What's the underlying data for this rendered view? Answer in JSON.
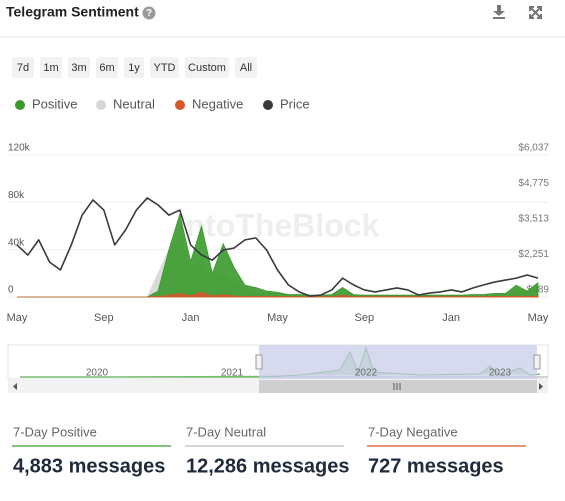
{
  "header": {
    "title": "Telegram Sentiment"
  },
  "range_buttons": [
    "7d",
    "1m",
    "3m",
    "6m",
    "1y",
    "YTD",
    "Custom",
    "All"
  ],
  "chart_data": {
    "type": "area",
    "watermark": "IntoTheBlock",
    "legend": "top-left",
    "grid": true,
    "categories": [
      "May",
      null,
      null,
      null,
      null,
      null,
      null,
      null,
      "Sep",
      null,
      null,
      null,
      null,
      null,
      null,
      null,
      "Jan",
      null,
      null,
      null,
      null,
      null,
      null,
      null,
      "May",
      null,
      null,
      null,
      null,
      null,
      null,
      null,
      "Sep",
      null,
      null,
      null,
      null,
      null,
      null,
      null,
      "Jan",
      null,
      null,
      null,
      null,
      null,
      null,
      null,
      "May"
    ],
    "ylim": [
      0,
      120000
    ],
    "yticks": [
      {
        "value": 0,
        "label": "0"
      },
      {
        "value": 40000,
        "label": "40k"
      },
      {
        "value": 80000,
        "label": "80k"
      },
      {
        "value": 120000,
        "label": "120k"
      }
    ],
    "y2lim": [
      989,
      6037
    ],
    "y2ticks": [
      {
        "value": 989,
        "label": "$989"
      },
      {
        "value": 2251,
        "label": "$2,251"
      },
      {
        "value": 3513,
        "label": "$3,513"
      },
      {
        "value": 4775,
        "label": "$4,775"
      },
      {
        "value": 6037,
        "label": "$6,037"
      }
    ],
    "series": [
      {
        "name": "Neutral",
        "color": "#d6d6d6",
        "values": [
          0,
          0,
          0,
          0,
          0,
          0,
          0,
          0,
          0,
          0,
          0,
          0,
          0,
          20000,
          40000,
          50000,
          25000,
          30000,
          15000,
          20000,
          12000,
          8000,
          3000,
          3000,
          3000,
          2500,
          2500,
          2000,
          2000,
          2000,
          2500,
          2000,
          2000,
          2000,
          2000,
          2000,
          2000,
          2000,
          2000,
          2000,
          2000,
          2000,
          2500,
          2500,
          3000,
          3000,
          4000,
          3500,
          4000
        ]
      },
      {
        "name": "Positive",
        "color": "#3a9a2b",
        "values": [
          0,
          0,
          0,
          0,
          0,
          0,
          0,
          0,
          0,
          0,
          0,
          0,
          0,
          5000,
          40000,
          70000,
          30000,
          60000,
          20000,
          45000,
          25000,
          10000,
          8000,
          5000,
          4000,
          2000,
          2000,
          1500,
          1500,
          2000,
          8000,
          2000,
          1500,
          1500,
          1500,
          1500,
          1500,
          1500,
          1500,
          1500,
          1500,
          1500,
          2000,
          2000,
          3000,
          3000,
          10000,
          5000,
          12000
        ]
      },
      {
        "name": "Negative",
        "color": "#d4582a",
        "values": [
          0,
          0,
          0,
          0,
          0,
          0,
          0,
          0,
          0,
          0,
          0,
          0,
          0,
          500,
          1500,
          3000,
          1000,
          4000,
          800,
          2000,
          800,
          500,
          500,
          500,
          500,
          300,
          300,
          300,
          300,
          300,
          1500,
          300,
          300,
          300,
          300,
          300,
          300,
          300,
          300,
          300,
          300,
          300,
          300,
          300,
          500,
          500,
          600,
          500,
          700
        ]
      },
      {
        "name": "Price",
        "color": "#3a3a3e",
        "type": "line",
        "axis": "y2",
        "values": [
          2840,
          2480,
          3020,
          2230,
          1950,
          2840,
          3900,
          4440,
          4080,
          2840,
          3370,
          4080,
          4510,
          4260,
          3900,
          4080,
          2840,
          2480,
          2300,
          2660,
          2730,
          3020,
          3090,
          2660,
          1950,
          1420,
          1170,
          1020,
          1060,
          1240,
          1660,
          1420,
          1240,
          1170,
          1240,
          1310,
          1240,
          1060,
          1130,
          1170,
          1240,
          1170,
          1310,
          1420,
          1520,
          1590,
          1660,
          1770,
          1660
        ]
      }
    ]
  },
  "navigator": {
    "labels": [
      "2020",
      "2021",
      "2022",
      "2023"
    ]
  },
  "stats": [
    {
      "label": "7-Day Positive",
      "value": "4,883 messages",
      "color": "#3a9a2b"
    },
    {
      "label": "7-Day Neutral",
      "value": "12,286 messages",
      "color": "#bdbdbd"
    },
    {
      "label": "7-Day Negative",
      "value": "727 messages",
      "color": "#d4582a"
    }
  ]
}
